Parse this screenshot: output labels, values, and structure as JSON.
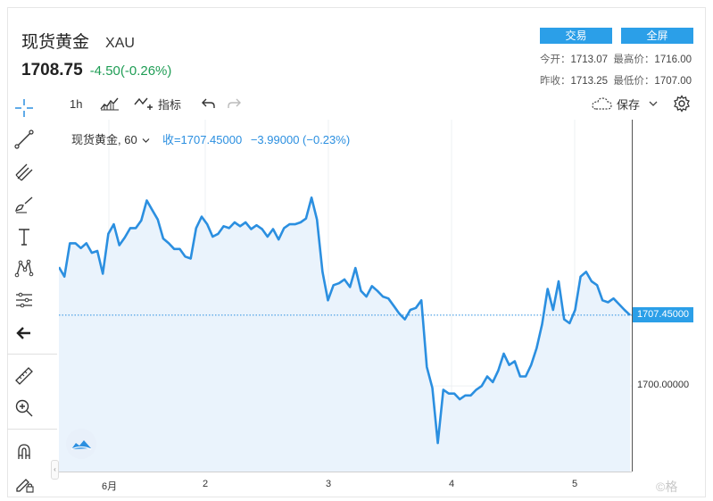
{
  "header": {
    "name": "现货黄金",
    "code": "XAU",
    "price": "1708.75",
    "change": "-4.50(-0.26%)"
  },
  "buttons": {
    "trade": "交易",
    "fullscreen": "全屏"
  },
  "stats": {
    "open_label": "今开：",
    "open": "1713.07",
    "high_label": "最高价：",
    "high": "1716.00",
    "prev_close_label": "昨收：",
    "prev_close": "1713.25",
    "low_label": "最低价：",
    "low": "1707.00"
  },
  "toolbar": {
    "interval": "1h",
    "indicators": "指标",
    "save": "保存"
  },
  "legend": {
    "symbol": "现货黄金, 60",
    "close": "收=1707.45000",
    "change": "−3.99000 (−0.23%)"
  },
  "price_tag": "1707.45000",
  "colors": {
    "line": "#2b8fe0",
    "area": "#eaf3fc",
    "accent": "#2b9fe8",
    "positive": "#1f9d55"
  },
  "watermark": "©格",
  "chart_data": {
    "type": "area",
    "series": [
      {
        "values": [
          1712.5,
          1711.5,
          1715.0,
          1715.0,
          1714.5,
          1715.0,
          1714.0,
          1714.2,
          1711.8,
          1716.0,
          1717.0,
          1714.8,
          1715.6,
          1716.6,
          1716.6,
          1717.4,
          1719.5,
          1718.5,
          1717.5,
          1715.5,
          1715.0,
          1714.4,
          1714.4,
          1713.6,
          1713.4,
          1716.6,
          1717.8,
          1717.0,
          1715.7,
          1716.0,
          1716.8,
          1716.6,
          1717.2,
          1716.8,
          1717.2,
          1716.5,
          1716.9,
          1716.5,
          1715.7,
          1716.5,
          1715.4,
          1716.6,
          1717.0,
          1717.0,
          1717.2,
          1717.6,
          1719.8,
          1717.5,
          1712.0,
          1709.0,
          1710.6,
          1710.8,
          1711.2,
          1710.4,
          1712.4,
          1710.0,
          1709.4,
          1710.5,
          1710.0,
          1709.4,
          1709.2,
          1708.4,
          1707.6,
          1707.0,
          1708.0,
          1708.2,
          1709.0,
          1702.0,
          1699.8,
          1694.0,
          1699.6,
          1699.2,
          1699.2,
          1698.6,
          1699.0,
          1699.0,
          1699.6,
          1700.0,
          1701.0,
          1700.4,
          1701.6,
          1703.4,
          1702.2,
          1702.6,
          1701.0,
          1701.0,
          1702.2,
          1704.0,
          1706.5,
          1710.2,
          1708.0,
          1711.0,
          1707.0,
          1706.6,
          1708.0,
          1711.5,
          1712.0,
          1711.0,
          1710.6,
          1709.0,
          1708.8,
          1709.2,
          1708.6,
          1708.0,
          1707.45
        ]
      }
    ],
    "x_ticks": [
      "6月",
      "2",
      "3",
      "4",
      "5"
    ],
    "y_ticks": [
      "1700.00000"
    ],
    "last_value": 1707.45,
    "ylim": [
      1691,
      1728
    ],
    "grid": true,
    "legend": "top-left"
  }
}
